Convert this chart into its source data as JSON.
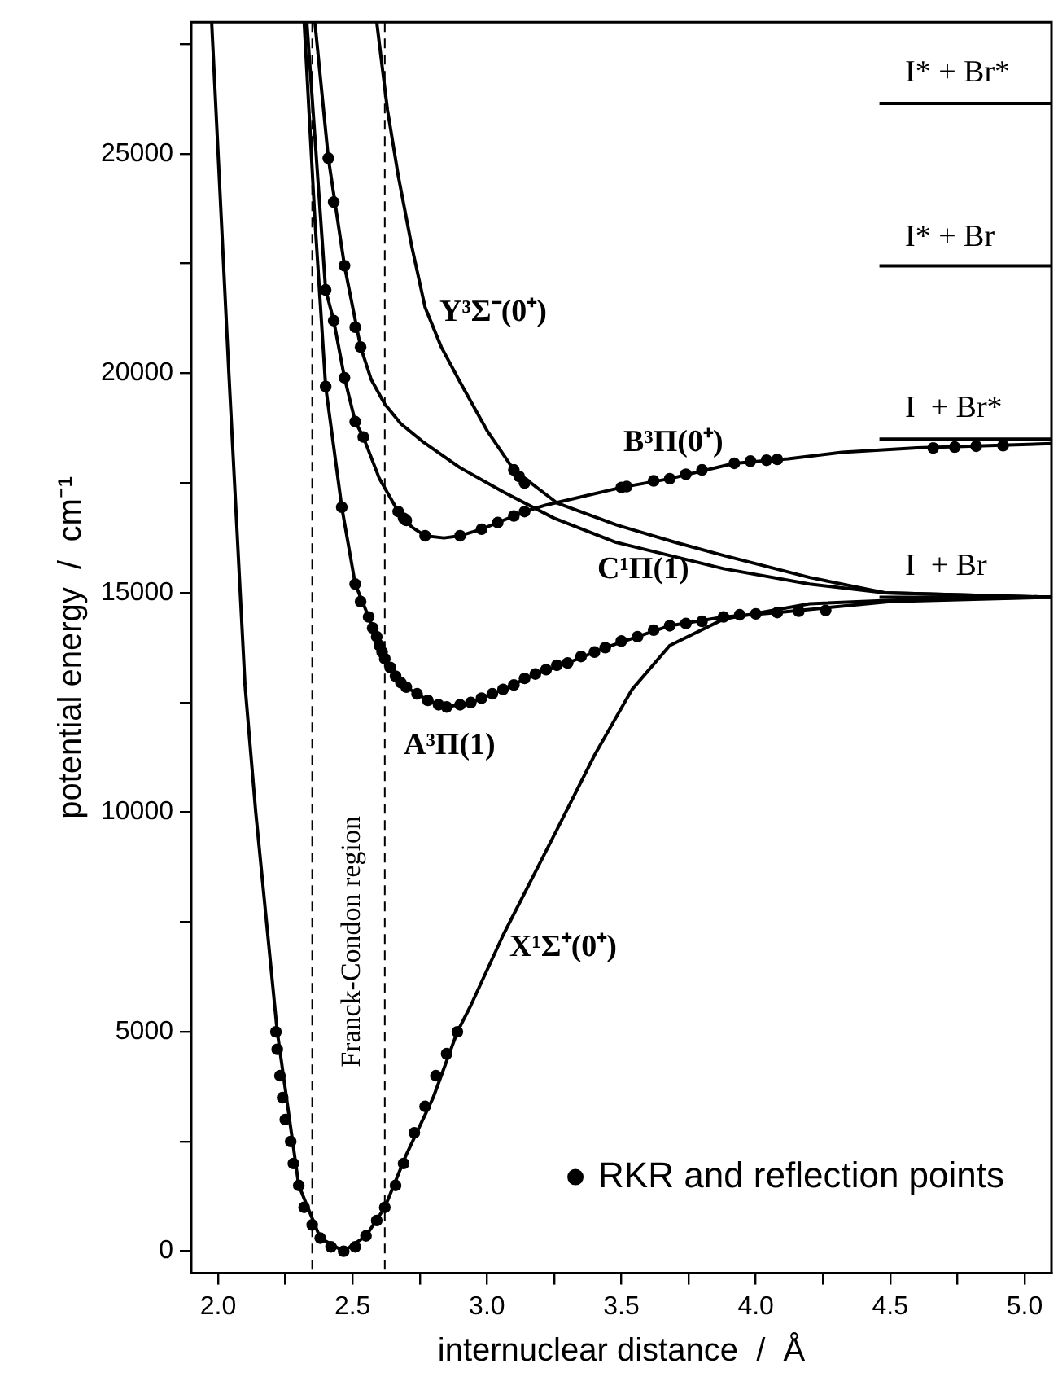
{
  "chart_data": {
    "type": "line",
    "xlabel": "internuclear distance  /  Å",
    "ylabel": "potential energy  /  cm⁻¹",
    "xlim": [
      1.9,
      5.1
    ],
    "ylim": [
      -500,
      28000
    ],
    "xticks": [
      {
        "value": 2,
        "label": "2.0"
      },
      {
        "value": 2.25,
        "label": null
      },
      {
        "value": 2.5,
        "label": "2.5"
      },
      {
        "value": 2.75,
        "label": null
      },
      {
        "value": 3,
        "label": "3.0"
      },
      {
        "value": 3.25,
        "label": null
      },
      {
        "value": 3.5,
        "label": "3.5"
      },
      {
        "value": 3.75,
        "label": null
      },
      {
        "value": 4,
        "label": "4.0"
      },
      {
        "value": 4.25,
        "label": null
      },
      {
        "value": 4.5,
        "label": "4.5"
      },
      {
        "value": 4.75,
        "label": null
      },
      {
        "value": 5,
        "label": "5.0"
      }
    ],
    "yticks": [
      0,
      {
        "value": 2500,
        "label": null
      },
      5000,
      {
        "value": 7500,
        "label": null
      },
      10000,
      {
        "value": 12500,
        "label": null
      },
      15000,
      {
        "value": 17500,
        "label": null
      },
      20000,
      {
        "value": 22500,
        "label": null
      },
      25000,
      {
        "value": 27500,
        "label": null
      }
    ],
    "legend": "bottom right",
    "series": [
      {
        "marker": "none",
        "color": "#000000",
        "x": [
          1.976,
          2.04,
          2.1,
          2.14,
          2.22,
          2.3,
          2.38,
          2.467,
          2.55,
          2.62,
          2.7,
          2.8,
          2.89,
          2.94,
          3.06,
          3.26,
          3.4,
          3.54,
          3.68,
          3.88,
          4.2,
          4.6,
          5.1
        ],
        "values": [
          28000,
          20000,
          12900,
          10000,
          5000,
          1500,
          300,
          0,
          350,
          1000,
          2200,
          3500,
          5000,
          5600,
          7200,
          9600,
          11300,
          12800,
          13800,
          14400,
          14750,
          14850,
          14900
        ]
      },
      {
        "marker": "none",
        "color": "#000000",
        "x": [
          2.32,
          2.36,
          2.4,
          2.46,
          2.51,
          2.56,
          2.62,
          2.7,
          2.78,
          2.85,
          2.94,
          3.06,
          3.18,
          3.3,
          3.44,
          3.68,
          3.88,
          4.08,
          4.5,
          5.1
        ],
        "values": [
          28000,
          23500,
          19700,
          16950,
          15200,
          14450,
          13500,
          12850,
          12550,
          12400,
          12500,
          12800,
          13150,
          13400,
          13750,
          14250,
          14450,
          14550,
          14800,
          14900
        ]
      },
      {
        "marker": "none",
        "color": "#000000",
        "x": [
          2.33,
          2.4,
          2.43,
          2.47,
          2.51,
          2.54,
          2.6,
          2.67,
          2.72,
          2.77,
          2.84,
          2.9,
          2.98,
          3.04,
          3.14,
          3.22,
          3.5,
          3.68,
          3.92,
          4.12,
          4.32,
          4.6,
          5.1
        ],
        "values": [
          28000,
          21900,
          21200,
          19900,
          18900,
          18550,
          17600,
          16850,
          16500,
          16300,
          16250,
          16300,
          16450,
          16600,
          16850,
          17000,
          17400,
          17600,
          17950,
          18050,
          18200,
          18300,
          18400
        ]
      },
      {
        "marker": "none",
        "color": "#000000",
        "x": [
          2.36,
          2.41,
          2.47,
          2.53,
          2.57,
          2.62,
          2.68,
          2.76,
          2.9,
          3.06,
          3.25,
          3.48,
          3.88,
          4.2,
          4.48,
          5.1
        ],
        "values": [
          28000,
          24900,
          22450,
          20600,
          19850,
          19300,
          18850,
          18450,
          17850,
          17300,
          16700,
          16150,
          15550,
          15200,
          15000,
          14900
        ]
      },
      {
        "marker": "none",
        "color": "#000000",
        "x": [
          2.59,
          2.63,
          2.67,
          2.72,
          2.77,
          2.83,
          2.9,
          3.0,
          3.1,
          3.26,
          3.48,
          3.7,
          3.88,
          4.2,
          4.48,
          5.1
        ],
        "values": [
          28000,
          26000,
          24500,
          22900,
          21500,
          20600,
          19800,
          18700,
          17800,
          17050,
          16550,
          16150,
          15850,
          15350,
          15000,
          14900
        ]
      },
      {
        "marker": "none",
        "color": "#000000",
        "x": [
          4.46,
          5.1
        ],
        "values": [
          26150,
          26150
        ]
      },
      {
        "marker": "none",
        "color": "#000000",
        "x": [
          4.46,
          5.1
        ],
        "values": [
          22450,
          22450
        ]
      },
      {
        "marker": "none",
        "color": "#000000",
        "x": [
          4.46,
          5.1
        ],
        "values": [
          18500,
          18500
        ]
      },
      {
        "marker": "none",
        "color": "#000000",
        "x": [
          4.46,
          5.1
        ],
        "values": [
          14900,
          14900
        ]
      },
      {
        "type": "scatter",
        "marker": "circle",
        "name": "RKR and reflection points",
        "color": "#000000",
        "x": [
          2.215,
          2.22,
          2.23,
          2.24,
          2.25,
          2.27,
          2.28,
          2.3,
          2.32,
          2.35,
          2.38,
          2.42,
          2.467,
          2.51,
          2.55,
          2.59,
          2.62,
          2.66,
          2.69,
          2.73,
          2.77,
          2.81,
          2.85,
          2.89,
          2.4,
          2.46,
          2.51,
          2.53,
          2.56,
          2.575,
          2.59,
          2.6,
          2.61,
          2.62,
          2.64,
          2.66,
          2.68,
          2.7,
          2.74,
          2.78,
          2.82,
          2.85,
          2.9,
          2.94,
          2.98,
          3.02,
          3.06,
          3.1,
          3.14,
          3.18,
          3.22,
          3.26,
          3.3,
          3.35,
          3.4,
          3.44,
          3.5,
          3.56,
          3.62,
          3.68,
          3.74,
          3.8,
          3.88,
          3.94,
          4.0,
          4.08,
          4.16,
          4.26,
          2.4,
          2.43,
          2.47,
          2.51,
          2.54,
          2.67,
          2.69,
          2.7,
          2.77,
          2.9,
          2.98,
          3.04,
          3.1,
          3.14,
          3.5,
          3.52,
          3.62,
          3.68,
          3.74,
          3.8,
          3.92,
          3.98,
          4.04,
          4.08,
          4.66,
          4.74,
          4.82,
          4.92,
          2.41,
          2.43,
          2.47,
          2.51,
          2.53,
          3.1,
          3.12,
          3.14
        ],
        "values": [
          5000,
          4600,
          4000,
          3500,
          3000,
          2500,
          2000,
          1500,
          1000,
          600,
          300,
          100,
          0,
          100,
          350,
          700,
          1000,
          1500,
          2000,
          2700,
          3300,
          4000,
          4500,
          5000,
          19700,
          16950,
          15200,
          14800,
          14450,
          14200,
          14000,
          13800,
          13650,
          13500,
          13300,
          13100,
          12950,
          12850,
          12700,
          12550,
          12450,
          12400,
          12450,
          12500,
          12600,
          12700,
          12800,
          12900,
          13050,
          13150,
          13250,
          13350,
          13400,
          13550,
          13650,
          13750,
          13900,
          14000,
          14150,
          14250,
          14300,
          14350,
          14450,
          14500,
          14520,
          14550,
          14580,
          14600,
          21900,
          21200,
          19900,
          18900,
          18550,
          16850,
          16700,
          16650,
          16300,
          16300,
          16450,
          16600,
          16750,
          16850,
          17400,
          17420,
          17550,
          17600,
          17700,
          17800,
          17950,
          18000,
          18020,
          18040,
          18300,
          18320,
          18340,
          18350,
          24900,
          23900,
          22450,
          21050,
          20600,
          17800,
          17650,
          17500
        ]
      }
    ],
    "ref_lines": [
      {
        "axis": "x",
        "value": 2.35,
        "line_style": "dashed",
        "color": "#000000"
      },
      {
        "axis": "x",
        "value": 2.62,
        "line_style": "dashed",
        "color": "#000000",
        "label": "Franck-Condon region"
      }
    ],
    "annotations": [
      "I* + Br*",
      "I* + Br",
      "I  + Br*",
      "I  + Br",
      "Y³Σ⁻(0⁺)",
      "B³Π(0⁺)",
      "C¹Π(1)",
      "A³Π(1)",
      "X¹Σ⁺(0⁺)"
    ]
  }
}
